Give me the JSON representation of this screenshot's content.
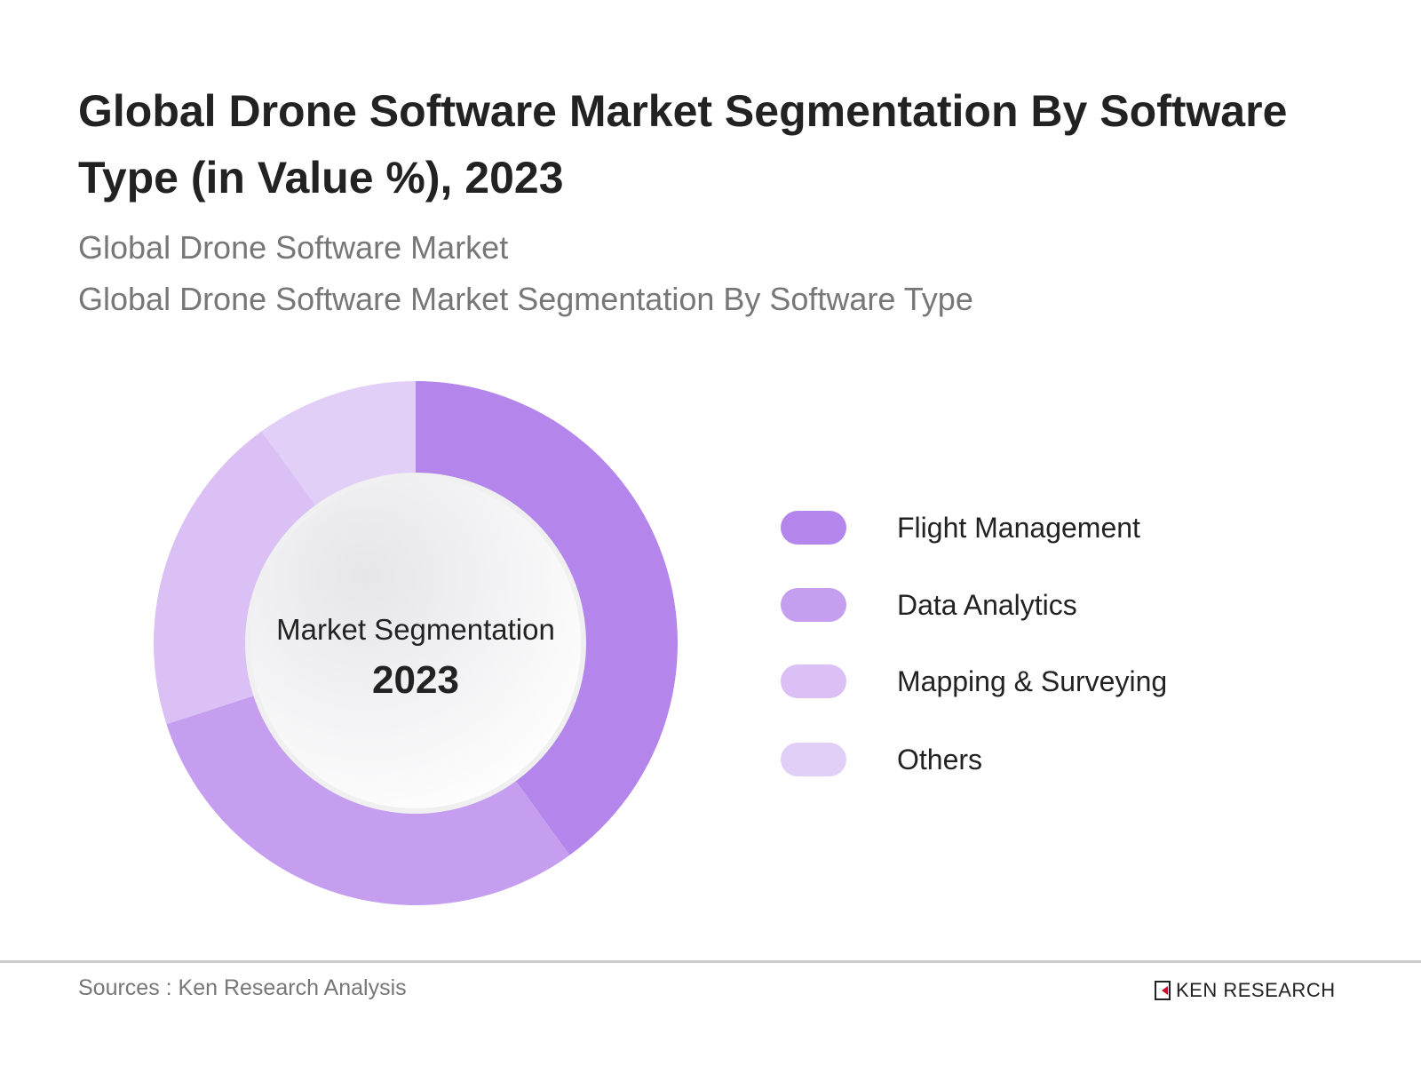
{
  "title": "Global Drone Software Market Segmentation By Software Type (in Value %), 2023",
  "subtitles": [
    "Global Drone Software Market",
    "Global Drone Software Market Segmentation By Software Type"
  ],
  "chart_data": {
    "type": "pie",
    "variant": "donut",
    "center_label": "Market Segmentation",
    "center_value": "2023",
    "categories": [
      "Flight Management",
      "Data Analytics",
      "Mapping & Surveying",
      "Others"
    ],
    "values": [
      40,
      30,
      20,
      10
    ],
    "colors": [
      "#b486ec",
      "#c59ef0",
      "#dbc0f5",
      "#e2cff7"
    ],
    "legend_position": "right"
  },
  "footer": {
    "source": "Sources : Ken Research Analysis",
    "logo_text": "KEN RESEARCH"
  }
}
